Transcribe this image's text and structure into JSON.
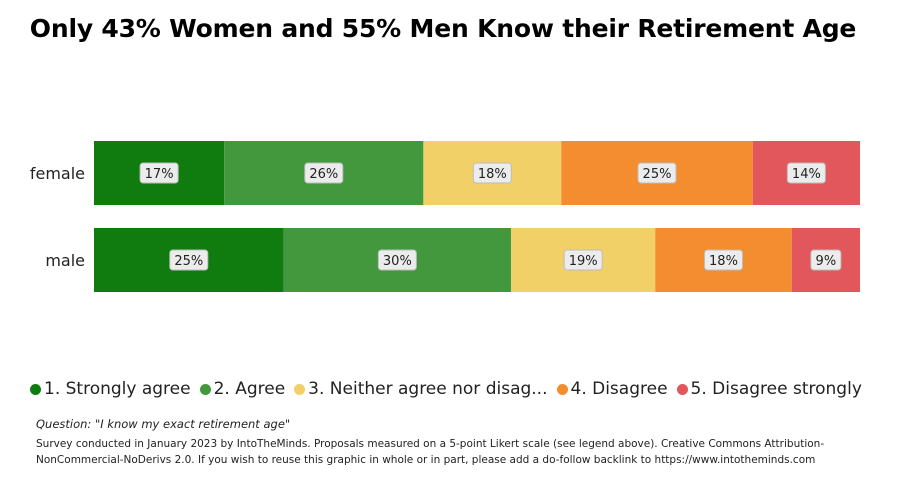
{
  "chart_data": {
    "type": "bar",
    "orientation": "horizontal",
    "stacked": true,
    "percent_stacked": true,
    "title": "Only 43% Women and 55% Men Know their Retirement Age",
    "categories": [
      "female",
      "male"
    ],
    "series": [
      {
        "name": "1. Strongly agree",
        "values": [
          17,
          25
        ],
        "labels": [
          "17%",
          "25%"
        ],
        "color": "#107c10"
      },
      {
        "name": "2. Agree",
        "values": [
          26,
          30
        ],
        "labels": [
          "26%",
          "30%"
        ],
        "color": "#43983e"
      },
      {
        "name": "3. Neither agree nor disag...",
        "values": [
          18,
          19
        ],
        "labels": [
          "18%",
          "19%"
        ],
        "color": "#f2d068"
      },
      {
        "name": "4. Disagree",
        "values": [
          25,
          18
        ],
        "labels": [
          "25%",
          "18%"
        ],
        "color": "#f38d2f"
      },
      {
        "name": "5. Disagree strongly",
        "values": [
          14,
          9
        ],
        "labels": [
          "14%",
          "9%"
        ],
        "color": "#e2575c"
      }
    ],
    "legend_position": "bottom",
    "grid": false
  },
  "notes": {
    "question": "Question: \"I know my exact retirement age\"",
    "footnote": "Survey conducted in January 2023 by IntoTheMinds. Proposals measured on a 5-point Likert scale (see legend above). Creative Commons Attribution-NonCommercial-NoDerivs 2.0. If you wish to reuse this graphic in whole or in part, please add a do-follow backlink to https://www.intotheminds.com"
  }
}
